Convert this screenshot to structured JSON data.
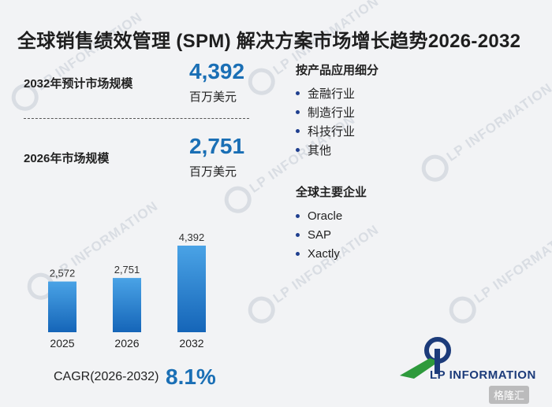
{
  "title": "全球销售绩效管理 (SPM) 解决方案市场增长趋势2026-2032",
  "kpis": [
    {
      "label": "2032年预计市场规模",
      "value": "4,392",
      "unit": "百万美元"
    },
    {
      "label": "2026年市场规模",
      "value": "2,751",
      "unit": "百万美元"
    }
  ],
  "segments": {
    "by_application_title": "按产品应用细分",
    "by_application": [
      "金融行业",
      "制造行业",
      "科技行业",
      "其他"
    ],
    "companies_title": "全球主要企业",
    "companies": [
      "Oracle",
      "SAP",
      "Xactly"
    ]
  },
  "chart_data": {
    "type": "bar",
    "categories": [
      "2025",
      "2026",
      "2032"
    ],
    "values": [
      2572,
      2751,
      4392
    ],
    "data_labels": [
      "2,572",
      "2,751",
      "4,392"
    ],
    "title": "",
    "xlabel": "",
    "ylabel": "",
    "grid": false,
    "bar_color_top": "#4aa3e6",
    "bar_color_bottom": "#1565b8"
  },
  "cagr": {
    "label": "CAGR(2026-2032)",
    "value": "8.1%"
  },
  "logo": {
    "text": "LP INFORMATION",
    "primary_color": "#1c3b7a",
    "accent_color": "#2e9a3c"
  },
  "watermark": {
    "text": "LP INFORMATION"
  },
  "corner_badge": {
    "text": "格隆汇"
  },
  "colors": {
    "accent": "#1a6fb5",
    "background": "#f2f3f5"
  }
}
